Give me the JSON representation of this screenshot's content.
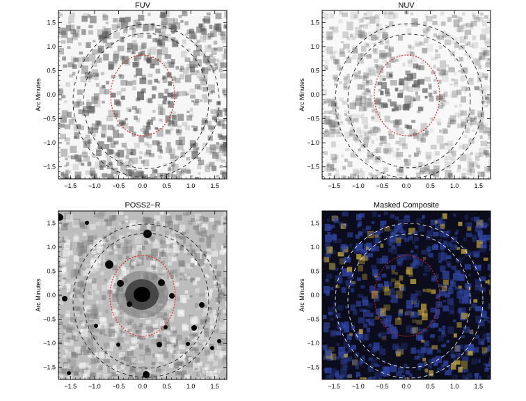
{
  "figure": {
    "panels": [
      {
        "id": "fuv",
        "title": "FUV",
        "style": "gray-sparse",
        "ylabel": "Arc Minutes"
      },
      {
        "id": "nuv",
        "title": "NUV",
        "style": "gray-diffuse",
        "ylabel": "Arc Minutes"
      },
      {
        "id": "poss",
        "title": "POSS2−R",
        "style": "gray-optical",
        "ylabel": "Arc Minutes"
      },
      {
        "id": "comp",
        "title": "Masked Composite",
        "style": "color-composite",
        "ylabel": "Arc Minutes"
      }
    ],
    "axis": {
      "xticks": [
        "−1.5",
        "−1.0",
        "−0.5",
        "0.0",
        "0.5",
        "1.0",
        "1.5"
      ],
      "yticks": [
        "1.5",
        "1.0",
        "0.5",
        "0.0",
        "−0.5",
        "−1.0",
        "−1.5"
      ],
      "range": [
        -1.75,
        1.75
      ]
    },
    "colors": {
      "inner_ellipse": "#e0262b",
      "outer_ellipse_dark": "#222222",
      "outer_ellipse_light": "#eeeeee",
      "composite_blue": "#3046a8",
      "composite_yellow": "#c8a93a"
    }
  }
}
